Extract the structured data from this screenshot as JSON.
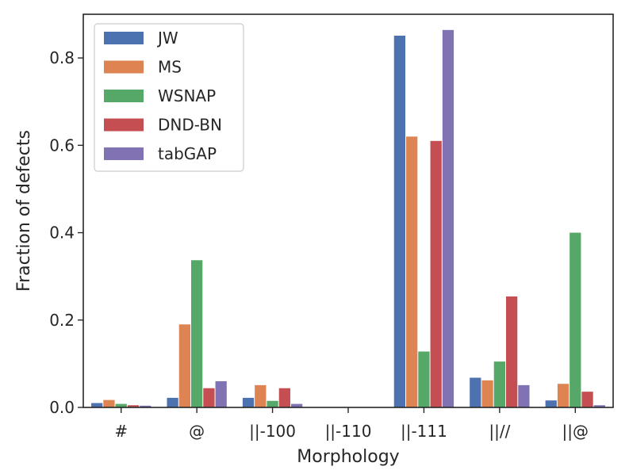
{
  "chart_data": {
    "type": "bar",
    "xlabel": "Morphology",
    "ylabel": "Fraction of defects",
    "ylim": [
      0.0,
      0.9
    ],
    "yticks": [
      0.0,
      0.2,
      0.4,
      0.6,
      0.8
    ],
    "ytick_labels": [
      "0.0",
      "0.2",
      "0.4",
      "0.6",
      "0.8"
    ],
    "grid": false,
    "legend_position": "top-left",
    "categories": [
      "#",
      "@",
      "||-100",
      "||-110",
      "||-111",
      "||//",
      "||@"
    ],
    "series": [
      {
        "name": "JW",
        "color": "#4c72b0",
        "values": [
          0.01,
          0.022,
          0.022,
          0.0,
          0.851,
          0.068,
          0.016
        ]
      },
      {
        "name": "MS",
        "color": "#dd8452",
        "values": [
          0.017,
          0.19,
          0.051,
          0.0,
          0.62,
          0.062,
          0.054
        ]
      },
      {
        "name": "WSNAP",
        "color": "#55a868",
        "values": [
          0.008,
          0.337,
          0.015,
          0.0,
          0.128,
          0.105,
          0.4
        ]
      },
      {
        "name": "DND-BN",
        "color": "#c44e52",
        "values": [
          0.005,
          0.044,
          0.044,
          0.0,
          0.61,
          0.254,
          0.036
        ]
      },
      {
        "name": "tabGAP",
        "color": "#8172b3",
        "values": [
          0.004,
          0.06,
          0.008,
          0.0,
          0.864,
          0.051,
          0.005
        ]
      }
    ]
  }
}
